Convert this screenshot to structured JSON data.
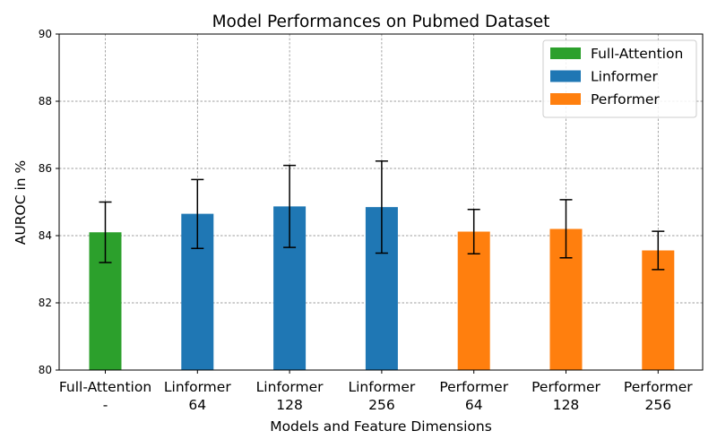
{
  "chart_data": {
    "type": "bar",
    "title": "Model Performances on Pubmed Dataset",
    "xlabel": "Models and Feature Dimensions",
    "ylabel": "AUROC in %",
    "ylim": [
      80,
      90
    ],
    "yticks": [
      "80",
      "82",
      "84",
      "86",
      "88",
      "90"
    ],
    "grid": true,
    "legend_position": "top-right",
    "categories": [
      {
        "line1": "Full-Attention",
        "line2": "-"
      },
      {
        "line1": "Linformer",
        "line2": "64"
      },
      {
        "line1": "Linformer",
        "line2": "128"
      },
      {
        "line1": "Linformer",
        "line2": "256"
      },
      {
        "line1": "Performer",
        "line2": "64"
      },
      {
        "line1": "Performer",
        "line2": "128"
      },
      {
        "line1": "Performer",
        "line2": "256"
      }
    ],
    "bars": [
      {
        "group": "Full-Attention",
        "value": 84.1,
        "err_low": 83.2,
        "err_high": 85.0
      },
      {
        "group": "Linformer",
        "value": 84.65,
        "err_low": 83.62,
        "err_high": 85.67
      },
      {
        "group": "Linformer",
        "value": 84.87,
        "err_low": 83.65,
        "err_high": 86.09
      },
      {
        "group": "Linformer",
        "value": 84.85,
        "err_low": 83.48,
        "err_high": 86.22
      },
      {
        "group": "Performer",
        "value": 84.12,
        "err_low": 83.46,
        "err_high": 84.78
      },
      {
        "group": "Performer",
        "value": 84.2,
        "err_low": 83.34,
        "err_high": 85.07
      },
      {
        "group": "Performer",
        "value": 83.56,
        "err_low": 82.99,
        "err_high": 84.13
      }
    ],
    "legend": [
      {
        "name": "Full-Attention",
        "color": "#2ca02c"
      },
      {
        "name": "Linformer",
        "color": "#1f77b4"
      },
      {
        "name": "Performer",
        "color": "#ff7f0e"
      }
    ]
  }
}
